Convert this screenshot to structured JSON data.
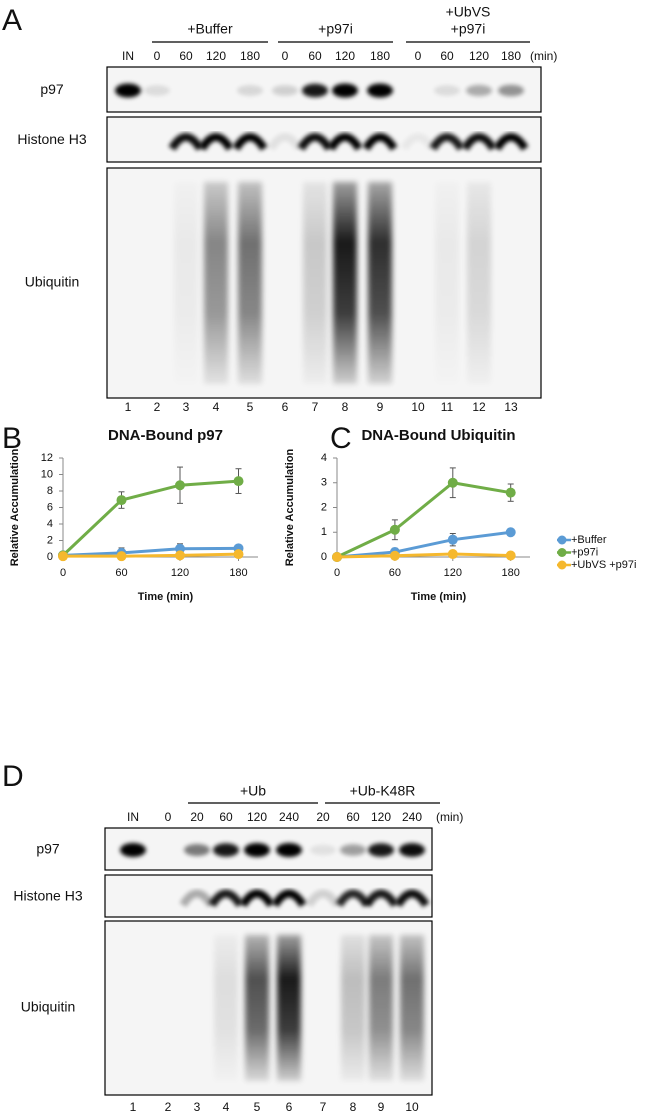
{
  "panel_a": {
    "label": "A",
    "groups": [
      {
        "lines": [
          "+Buffer"
        ]
      },
      {
        "lines": [
          "+p97i"
        ]
      },
      {
        "lines": [
          "+UbVS",
          "+p97i"
        ]
      }
    ],
    "times": [
      "IN",
      "0",
      "60",
      "120",
      "180",
      "0",
      "60",
      "120",
      "180",
      "0",
      "60",
      "120",
      "180"
    ],
    "time_unit": "(min)",
    "rows": [
      "p97",
      "Histone H3",
      "Ubiquitin"
    ],
    "lanes": [
      1,
      2,
      3,
      4,
      5,
      6,
      7,
      8,
      9,
      10,
      11,
      12,
      13
    ]
  },
  "chart_data": [
    {
      "type": "line",
      "panel_label": "B",
      "title": "DNA-Bound p97",
      "x_label": "Time (min)",
      "y_label": "Relative Accumulation",
      "x": [
        0,
        60,
        120,
        180
      ],
      "xlim": [
        0,
        200
      ],
      "xticks": [
        0,
        60,
        120,
        180
      ],
      "ylim": [
        0,
        12
      ],
      "yticks": [
        0,
        2,
        4,
        6,
        8,
        10,
        12
      ],
      "series": [
        {
          "color": "#5b9bd5",
          "values": [
            0.2,
            0.5,
            1.0,
            1.05
          ],
          "errors": [
            0.1,
            0.6,
            0.6,
            0.3
          ]
        },
        {
          "color": "#70ad47",
          "values": [
            0.2,
            6.9,
            8.7,
            9.2
          ],
          "errors": [
            0.1,
            1.0,
            2.2,
            1.5
          ]
        },
        {
          "color": "#f5b82e",
          "values": [
            0.1,
            0.1,
            0.2,
            0.35
          ],
          "errors": [
            0.05,
            0.1,
            0.15,
            0.2
          ]
        }
      ]
    },
    {
      "type": "line",
      "panel_label": "C",
      "title": "DNA-Bound Ubiquitin",
      "x_label": "Time (min)",
      "y_label": "Relative Accumulation",
      "x": [
        0,
        60,
        120,
        180
      ],
      "xlim": [
        0,
        200
      ],
      "xticks": [
        0,
        60,
        120,
        180
      ],
      "ylim": [
        0,
        4
      ],
      "yticks": [
        0,
        1,
        2,
        3,
        4
      ],
      "legend": "right",
      "series": [
        {
          "name": "+Buffer",
          "color": "#5b9bd5",
          "values": [
            0,
            0.2,
            0.7,
            1.0
          ],
          "errors": [
            0,
            0.15,
            0.25,
            0.05
          ]
        },
        {
          "name": "+p97i",
          "color": "#70ad47",
          "values": [
            0,
            1.1,
            3.0,
            2.6
          ],
          "errors": [
            0,
            0.4,
            0.6,
            0.35
          ]
        },
        {
          "name": "+UbVS +p97i",
          "color": "#f5b82e",
          "values": [
            0,
            0.05,
            0.12,
            0.06
          ],
          "errors": [
            0,
            0.05,
            0.08,
            0.05
          ]
        }
      ]
    }
  ],
  "panel_d": {
    "label": "D",
    "groups": [
      {
        "lines": [
          "+Ub"
        ]
      },
      {
        "lines": [
          "+Ub-K48R"
        ]
      }
    ],
    "times": [
      "IN",
      "0",
      "20",
      "60",
      "120",
      "240",
      "20",
      "60",
      "120",
      "240"
    ],
    "time_unit": "(min)",
    "rows": [
      "p97",
      "Histone H3",
      "Ubiquitin"
    ],
    "lanes": [
      1,
      2,
      3,
      4,
      5,
      6,
      7,
      8,
      9,
      10
    ]
  }
}
